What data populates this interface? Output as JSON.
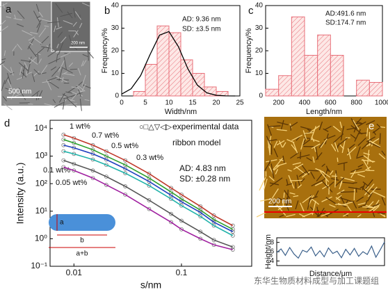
{
  "panel_a": {
    "label": "a",
    "scale_bar": "500 nm",
    "inset_scale_bar": "200 nm"
  },
  "panel_e_image": {
    "label": "e",
    "scale_bar": "200 nm"
  },
  "watermark": "东华生物质材料成型与加工课题组",
  "chart_data": [
    {
      "type": "histogram",
      "label": "b",
      "xlabel": "Width/nm",
      "ylabel": "Frequency/%",
      "bins": [
        2.5,
        5,
        7.5,
        10,
        12.5,
        15,
        17.5,
        20,
        22.5
      ],
      "counts": [
        2,
        14,
        31,
        28,
        16,
        10,
        4,
        2
      ],
      "color": "#e8707a",
      "fit": {
        "x": [
          0,
          2,
          4,
          6,
          8,
          10,
          12,
          14,
          16,
          18,
          20,
          22,
          24
        ],
        "values": [
          0.81,
          3.18,
          8.98,
          18.3,
          26.9,
          28.5,
          21.8,
          12.0,
          4.8,
          1.38,
          0.29,
          0.04,
          0
        ],
        "color": "#000000"
      },
      "xlim": [
        0,
        25
      ],
      "xticks": [
        0,
        5,
        10,
        15,
        20,
        25
      ],
      "ylim": [
        0,
        40
      ],
      "yticks": [
        0,
        10,
        20,
        30,
        40
      ],
      "annotations": [
        "AD: 9.36 nm",
        "SD: ±3.5 nm"
      ]
    },
    {
      "type": "histogram",
      "label": "c",
      "xlabel": "Length/nm",
      "ylabel": "Frequency/%",
      "bins": [
        100,
        200,
        300,
        400,
        500,
        600,
        700,
        800,
        900,
        1000
      ],
      "counts": [
        3,
        9,
        35,
        18,
        27,
        18,
        0,
        7,
        6
      ],
      "color": "#e8707a",
      "xlim": [
        100,
        1000
      ],
      "xticks": [
        200,
        400,
        600,
        800,
        1000
      ],
      "ylim": [
        0,
        40
      ],
      "yticks": [
        0,
        10,
        20,
        30,
        40
      ],
      "annotations": [
        "AD:491.6 nm",
        "SD:174.7 nm"
      ]
    },
    {
      "type": "line",
      "label": "d",
      "xlabel": "s/nm",
      "ylabel": "Intensity (a.u.)",
      "xscale": "log",
      "yscale": "log",
      "x": [
        0.008,
        0.01,
        0.015,
        0.02,
        0.03,
        0.05,
        0.08,
        0.1,
        0.15,
        0.2,
        0.3
      ],
      "series": [
        {
          "name": "1 wt%",
          "color": "#c0392b",
          "values": [
            6000,
            4500,
            2500,
            1500,
            700,
            230,
            70,
            40,
            15,
            7,
            3
          ]
        },
        {
          "name": "0.7 wt%",
          "color": "#2ca02c",
          "values": [
            4000,
            3000,
            1700,
            1000,
            480,
            160,
            50,
            28,
            11,
            5,
            2.2
          ]
        },
        {
          "name": "0.5 wt%",
          "color": "#1f3fbf",
          "values": [
            2500,
            2000,
            1200,
            750,
            350,
            120,
            38,
            22,
            9,
            4,
            1.8
          ]
        },
        {
          "name": "0.3 wt%",
          "color": "#20b2aa",
          "values": [
            1500,
            1200,
            750,
            480,
            240,
            85,
            28,
            16,
            6.5,
            3,
            1.3
          ]
        },
        {
          "name": "0.1 wt%",
          "color": "#555555",
          "values": [
            700,
            520,
            300,
            180,
            80,
            25,
            8,
            4.5,
            1.8,
            0.9,
            0.5
          ]
        },
        {
          "name": "0.05 wt%",
          "color": "#a020a0",
          "values": [
            400,
            300,
            160,
            90,
            40,
            12,
            4,
            2.2,
            1,
            0.6,
            0.4
          ]
        }
      ],
      "xlim": [
        0.006,
        0.45
      ],
      "xticks": [
        0.01,
        0.1
      ],
      "ylim": [
        0.1,
        20000
      ],
      "yticks": [
        {
          "value": 0.1,
          "label": "10⁻¹"
        },
        {
          "value": 1,
          "label": "10⁰"
        },
        {
          "value": 10,
          "label": "10¹"
        },
        {
          "value": 100,
          "label": "10²"
        },
        {
          "value": 1000,
          "label": "10³"
        },
        {
          "value": 10000,
          "label": "10⁴"
        }
      ],
      "legend": [
        {
          "symbol": "○□△▽◁▷",
          "label": "experimental data"
        },
        {
          "label": "ribbon model"
        }
      ],
      "annotations": [
        "AD: 4.83 nm",
        "SD: ±0.28 nm"
      ],
      "diagram_labels": [
        "a",
        "b",
        "a+b"
      ]
    },
    {
      "type": "line",
      "xlabel": "Distance/μm",
      "ylabel": "Height/nm",
      "color": "#3a5f8a",
      "values": [
        5.8,
        6.6,
        5.2,
        6.9,
        5.5,
        4.6,
        6.3,
        5.9,
        7.0,
        5.1,
        6.2,
        4.9,
        6.8,
        5.6,
        6.1,
        4.7,
        6.5,
        5.3,
        6.7,
        5.0,
        6.0,
        5.4,
        7.2,
        4.8,
        6.4,
        8.1
      ],
      "ylim": [
        3,
        9
      ],
      "yticks": [
        4,
        6,
        8
      ]
    }
  ]
}
